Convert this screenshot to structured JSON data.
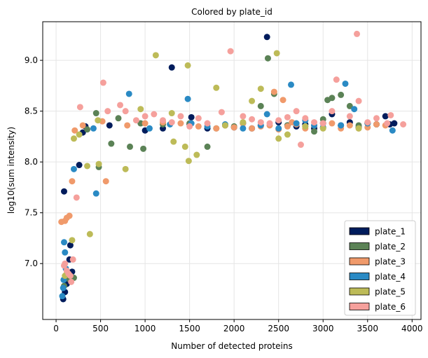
{
  "chart_data": {
    "type": "scatter",
    "title": "Colored by plate_id",
    "xlabel": "Number of detected proteins",
    "ylabel": "log10(sum intensity)",
    "xlim": [
      -150,
      4100
    ],
    "ylim": [
      6.45,
      9.38
    ],
    "xticks": [
      0,
      500,
      1000,
      1500,
      2000,
      2500,
      3000,
      3500,
      4000
    ],
    "yticks": [
      7.0,
      7.5,
      8.0,
      8.5,
      9.0
    ],
    "xtick_labels": [
      "0",
      "500",
      "1000",
      "1500",
      "2000",
      "2500",
      "3000",
      "3500",
      "4000"
    ],
    "ytick_labels": [
      "7.0",
      "7.5",
      "8.0",
      "8.5",
      "9.0"
    ],
    "grid": true,
    "legend_position": "bottom-right",
    "series": [
      {
        "name": "plate_1",
        "color": "#001c5c",
        "points": [
          [
            80,
            6.65
          ],
          [
            100,
            6.72
          ],
          [
            120,
            6.8
          ],
          [
            90,
            7.71
          ],
          [
            150,
            7.04
          ],
          [
            160,
            7.18
          ],
          [
            180,
            6.92
          ],
          [
            260,
            7.97
          ],
          [
            300,
            8.29
          ],
          [
            330,
            8.35
          ],
          [
            600,
            8.36
          ],
          [
            1000,
            8.31
          ],
          [
            1200,
            8.33
          ],
          [
            1300,
            8.93
          ],
          [
            1500,
            8.37
          ],
          [
            1520,
            8.44
          ],
          [
            1700,
            8.33
          ],
          [
            1900,
            8.36
          ],
          [
            2000,
            8.34
          ],
          [
            2100,
            8.38
          ],
          [
            2200,
            8.33
          ],
          [
            2300,
            8.36
          ],
          [
            2370,
            9.23
          ],
          [
            2500,
            8.39
          ],
          [
            2600,
            8.36
          ],
          [
            2700,
            8.35
          ],
          [
            2800,
            8.37
          ],
          [
            2900,
            8.33
          ],
          [
            3000,
            8.38
          ],
          [
            3100,
            8.47
          ],
          [
            3200,
            8.36
          ],
          [
            3300,
            8.39
          ],
          [
            3400,
            8.34
          ],
          [
            3500,
            8.38
          ],
          [
            3600,
            8.37
          ],
          [
            3700,
            8.45
          ],
          [
            3750,
            8.37
          ],
          [
            3800,
            8.38
          ]
        ]
      },
      {
        "name": "plate_2",
        "color": "#5b8256",
        "points": [
          [
            90,
            6.78
          ],
          [
            140,
            6.85
          ],
          [
            200,
            6.86
          ],
          [
            350,
            8.32
          ],
          [
            450,
            8.48
          ],
          [
            480,
            7.95
          ],
          [
            620,
            8.18
          ],
          [
            700,
            8.43
          ],
          [
            830,
            8.15
          ],
          [
            950,
            8.38
          ],
          [
            980,
            8.13
          ],
          [
            1200,
            8.37
          ],
          [
            1500,
            8.38
          ],
          [
            1700,
            8.15
          ],
          [
            1800,
            8.33
          ],
          [
            2000,
            8.35
          ],
          [
            2100,
            8.38
          ],
          [
            2300,
            8.55
          ],
          [
            2380,
            9.02
          ],
          [
            2450,
            8.67
          ],
          [
            2600,
            8.36
          ],
          [
            2800,
            8.35
          ],
          [
            2900,
            8.3
          ],
          [
            3000,
            8.42
          ],
          [
            3050,
            8.61
          ],
          [
            3100,
            8.63
          ],
          [
            3200,
            8.66
          ],
          [
            3300,
            8.55
          ],
          [
            3400,
            8.36
          ],
          [
            3500,
            8.38
          ],
          [
            3600,
            8.37
          ]
        ]
      },
      {
        "name": "plate_3",
        "color": "#f09a6b",
        "points": [
          [
            60,
            7.41
          ],
          [
            100,
            7.42
          ],
          [
            120,
            7.45
          ],
          [
            150,
            7.47
          ],
          [
            180,
            7.81
          ],
          [
            210,
            8.31
          ],
          [
            300,
            8.36
          ],
          [
            520,
            8.4
          ],
          [
            560,
            7.81
          ],
          [
            800,
            8.36
          ],
          [
            1000,
            8.38
          ],
          [
            1200,
            8.39
          ],
          [
            1400,
            8.38
          ],
          [
            1600,
            8.35
          ],
          [
            1800,
            8.33
          ],
          [
            1900,
            8.36
          ],
          [
            2000,
            8.34
          ],
          [
            2100,
            8.38
          ],
          [
            2200,
            8.33
          ],
          [
            2300,
            8.35
          ],
          [
            2400,
            8.36
          ],
          [
            2450,
            8.69
          ],
          [
            2500,
            8.32
          ],
          [
            2550,
            8.61
          ],
          [
            2600,
            8.35
          ],
          [
            2650,
            8.39
          ],
          [
            2700,
            8.37
          ],
          [
            2800,
            8.33
          ],
          [
            2900,
            8.36
          ],
          [
            3000,
            8.34
          ],
          [
            3100,
            8.38
          ],
          [
            3200,
            8.33
          ],
          [
            3300,
            8.36
          ],
          [
            3400,
            8.33
          ],
          [
            3500,
            8.34
          ],
          [
            3600,
            8.37
          ],
          [
            3700,
            8.36
          ]
        ]
      },
      {
        "name": "plate_4",
        "color": "#2a8ac4",
        "points": [
          [
            70,
            6.68
          ],
          [
            80,
            6.76
          ],
          [
            85,
            6.84
          ],
          [
            90,
            7.21
          ],
          [
            100,
            7.11
          ],
          [
            110,
            6.95
          ],
          [
            200,
            7.93
          ],
          [
            420,
            8.33
          ],
          [
            450,
            7.69
          ],
          [
            820,
            8.67
          ],
          [
            1050,
            8.33
          ],
          [
            1280,
            8.37
          ],
          [
            1480,
            8.62
          ],
          [
            1520,
            8.38
          ],
          [
            1700,
            8.35
          ],
          [
            1900,
            8.37
          ],
          [
            2100,
            8.33
          ],
          [
            2300,
            8.36
          ],
          [
            2370,
            8.47
          ],
          [
            2500,
            8.33
          ],
          [
            2640,
            8.76
          ],
          [
            2700,
            8.38
          ],
          [
            2800,
            8.41
          ],
          [
            2900,
            8.36
          ],
          [
            3000,
            8.34
          ],
          [
            3200,
            8.36
          ],
          [
            3250,
            8.77
          ],
          [
            3350,
            8.52
          ],
          [
            3500,
            8.38
          ],
          [
            3780,
            8.31
          ]
        ]
      },
      {
        "name": "plate_5",
        "color": "#bdbb58",
        "points": [
          [
            100,
            6.88
          ],
          [
            120,
            6.9
          ],
          [
            180,
            7.23
          ],
          [
            200,
            8.23
          ],
          [
            260,
            8.27
          ],
          [
            350,
            7.96
          ],
          [
            380,
            7.29
          ],
          [
            470,
            8.41
          ],
          [
            480,
            7.98
          ],
          [
            780,
            7.93
          ],
          [
            950,
            8.52
          ],
          [
            1120,
            9.05
          ],
          [
            1300,
            8.48
          ],
          [
            1320,
            8.2
          ],
          [
            1450,
            8.15
          ],
          [
            1480,
            8.95
          ],
          [
            1490,
            8.01
          ],
          [
            1580,
            8.07
          ],
          [
            1800,
            8.73
          ],
          [
            1900,
            8.36
          ],
          [
            2100,
            8.39
          ],
          [
            2200,
            8.6
          ],
          [
            2300,
            8.72
          ],
          [
            2480,
            9.07
          ],
          [
            2500,
            8.23
          ],
          [
            2600,
            8.27
          ],
          [
            2800,
            8.35
          ],
          [
            3000,
            8.33
          ],
          [
            3400,
            8.33
          ]
        ]
      },
      {
        "name": "plate_6",
        "color": "#f5a09c",
        "points": [
          [
            90,
            6.98
          ],
          [
            100,
            7.0
          ],
          [
            120,
            6.93
          ],
          [
            140,
            6.9
          ],
          [
            160,
            6.88
          ],
          [
            170,
            6.82
          ],
          [
            190,
            7.04
          ],
          [
            230,
            7.65
          ],
          [
            270,
            8.54
          ],
          [
            530,
            8.78
          ],
          [
            580,
            8.5
          ],
          [
            720,
            8.56
          ],
          [
            780,
            8.5
          ],
          [
            900,
            8.41
          ],
          [
            1000,
            8.45
          ],
          [
            1100,
            8.47
          ],
          [
            1200,
            8.41
          ],
          [
            1300,
            8.39
          ],
          [
            1400,
            8.45
          ],
          [
            1500,
            8.35
          ],
          [
            1600,
            8.43
          ],
          [
            1700,
            8.38
          ],
          [
            1860,
            8.49
          ],
          [
            1960,
            9.09
          ],
          [
            2100,
            8.45
          ],
          [
            2200,
            8.42
          ],
          [
            2300,
            8.39
          ],
          [
            2400,
            8.38
          ],
          [
            2500,
            8.41
          ],
          [
            2600,
            8.44
          ],
          [
            2700,
            8.5
          ],
          [
            2750,
            8.17
          ],
          [
            2800,
            8.43
          ],
          [
            2900,
            8.39
          ],
          [
            3000,
            8.38
          ],
          [
            3100,
            8.5
          ],
          [
            3150,
            8.81
          ],
          [
            3300,
            8.45
          ],
          [
            3380,
            9.26
          ],
          [
            3400,
            8.6
          ],
          [
            3500,
            8.39
          ],
          [
            3600,
            8.43
          ],
          [
            3720,
            8.38
          ],
          [
            3760,
            8.46
          ],
          [
            3900,
            8.37
          ]
        ]
      }
    ]
  }
}
